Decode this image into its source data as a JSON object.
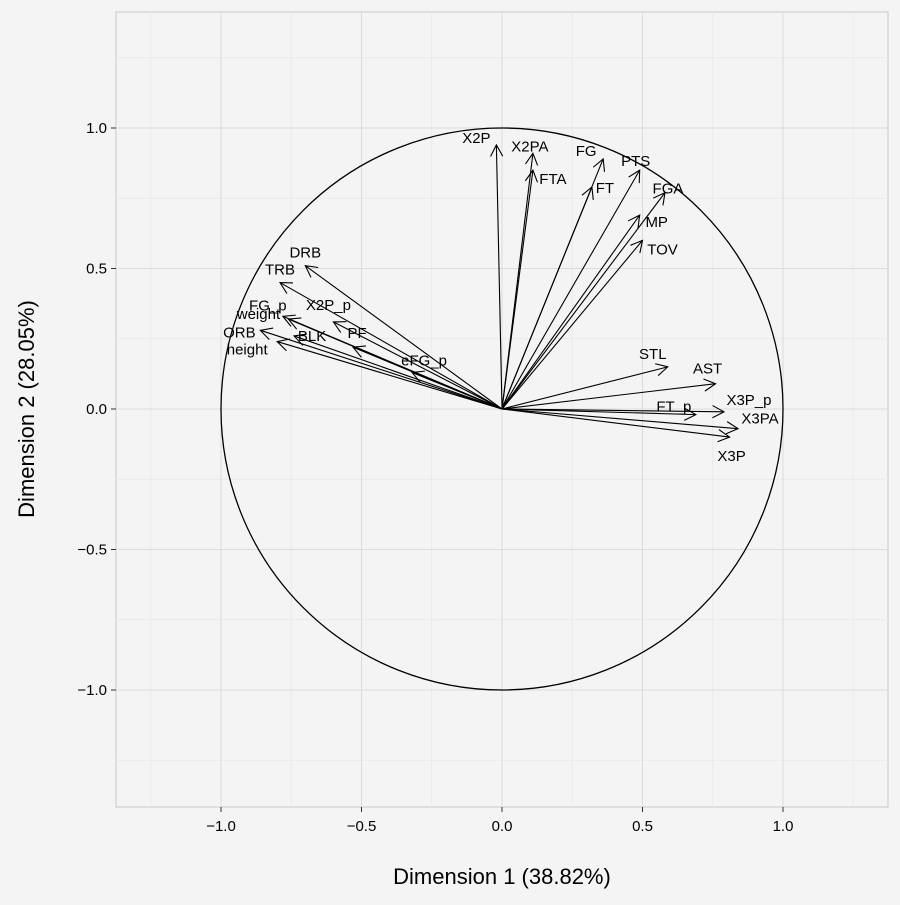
{
  "chart_data": {
    "type": "scatter",
    "subtype": "pca-correlation-circle",
    "title": "",
    "xlabel": "Dimension 1 (38.82%)",
    "ylabel": "Dimension 2 (28.05%)",
    "xlim": [
      -1.38,
      1.38
    ],
    "ylim": [
      -1.38,
      1.38
    ],
    "xticks": [
      -1.0,
      -0.5,
      0.0,
      0.5,
      1.0
    ],
    "yticks": [
      -1.0,
      -0.5,
      0.0,
      0.5,
      1.0
    ],
    "xtick_labels": [
      "−1.0",
      "−0.5",
      "0.0",
      "0.5",
      "1.0"
    ],
    "ytick_labels": [
      "−1.0",
      "−0.5",
      "0.0",
      "0.5",
      "1.0"
    ],
    "grid": true,
    "circle_radius": 1.0,
    "colors": {
      "panel": "#f4f4f4",
      "grid_major": "#dcdcdc",
      "grid_minor": "#e9e9e9",
      "border": "#c8c8c8",
      "ink": "#000000"
    },
    "variables": [
      {
        "name": "X2P",
        "x": -0.02,
        "y": 0.94
      },
      {
        "name": "X2PA",
        "x": 0.11,
        "y": 0.91
      },
      {
        "name": "FTA",
        "x": 0.11,
        "y": 0.85
      },
      {
        "name": "FG",
        "x": 0.36,
        "y": 0.89
      },
      {
        "name": "FT",
        "x": 0.32,
        "y": 0.79
      },
      {
        "name": "PTS",
        "x": 0.49,
        "y": 0.85
      },
      {
        "name": "FGA",
        "x": 0.58,
        "y": 0.77
      },
      {
        "name": "MP",
        "x": 0.49,
        "y": 0.69
      },
      {
        "name": "TOV",
        "x": 0.5,
        "y": 0.6
      },
      {
        "name": "DRB",
        "x": -0.7,
        "y": 0.51
      },
      {
        "name": "TRB",
        "x": -0.79,
        "y": 0.45
      },
      {
        "name": "FG_p",
        "x": -0.78,
        "y": 0.33
      },
      {
        "name": "weight",
        "x": -0.76,
        "y": 0.32
      },
      {
        "name": "X2P_p",
        "x": -0.6,
        "y": 0.31
      },
      {
        "name": "ORB",
        "x": -0.86,
        "y": 0.28
      },
      {
        "name": "BLK",
        "x": -0.74,
        "y": 0.26
      },
      {
        "name": "PF",
        "x": -0.53,
        "y": 0.22
      },
      {
        "name": "height",
        "x": -0.8,
        "y": 0.24
      },
      {
        "name": "eFG_p",
        "x": -0.32,
        "y": 0.13
      },
      {
        "name": "STL",
        "x": 0.59,
        "y": 0.15
      },
      {
        "name": "AST",
        "x": 0.76,
        "y": 0.09
      },
      {
        "name": "X3P_p",
        "x": 0.79,
        "y": -0.01
      },
      {
        "name": "FT_p",
        "x": 0.69,
        "y": -0.02
      },
      {
        "name": "X3PA",
        "x": 0.84,
        "y": -0.07
      },
      {
        "name": "X3P",
        "x": 0.81,
        "y": -0.1
      }
    ]
  }
}
